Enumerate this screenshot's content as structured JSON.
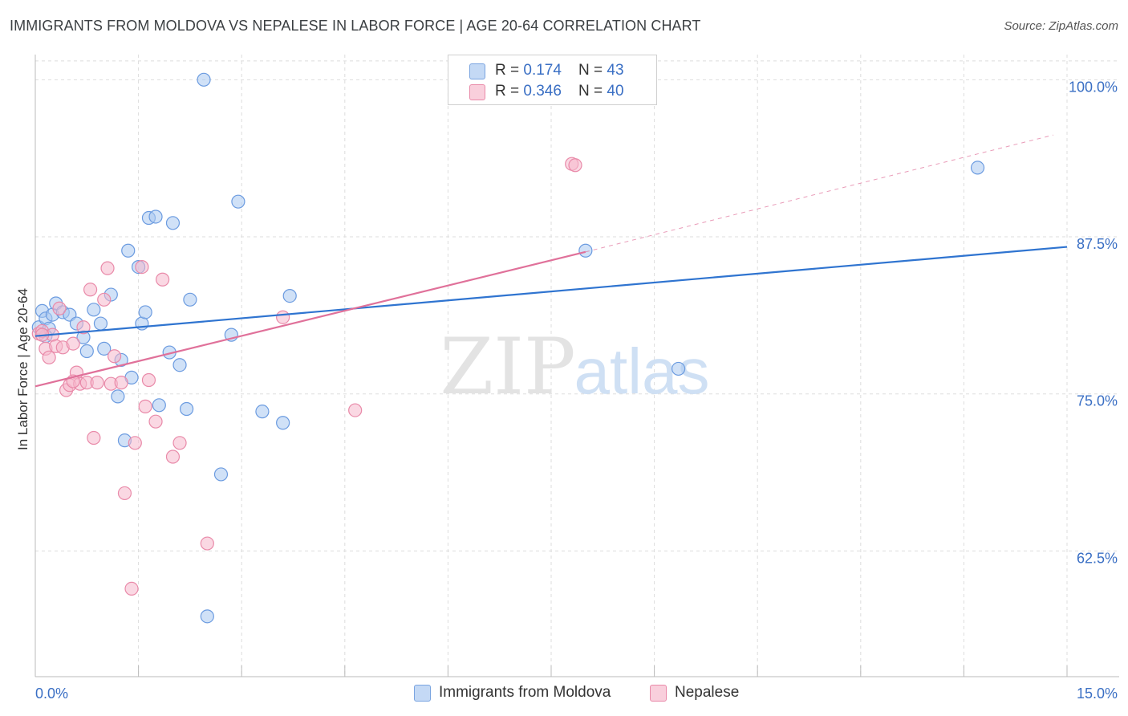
{
  "header": {
    "title": "IMMIGRANTS FROM MOLDOVA VS NEPALESE IN LABOR FORCE | AGE 20-64 CORRELATION CHART",
    "source": "Source: ZipAtlas.com"
  },
  "watermark": {
    "zip": "ZIP",
    "atlas": "atlas"
  },
  "legend": {
    "rows": [
      {
        "r_label": "R = ",
        "r_value": "0.174",
        "n_label": "N = ",
        "n_value": "43"
      },
      {
        "r_label": "R = ",
        "r_value": "0.346",
        "n_label": "N = ",
        "n_value": "40"
      }
    ]
  },
  "colors": {
    "blue_fill": "#a9c8f0",
    "blue_stroke": "#6b9be0",
    "blue_line": "#2f74d0",
    "pink_fill": "#f6b8cc",
    "pink_stroke": "#e98aa9",
    "pink_line": "#e0719a",
    "axis_label": "#3a6fc4",
    "grid": "#dddddd"
  },
  "chart_data": {
    "type": "scatter",
    "title": "IMMIGRANTS FROM MOLDOVA VS NEPALESE IN LABOR FORCE | AGE 20-64 CORRELATION CHART",
    "xlabel": "",
    "ylabel": "In Labor Force | Age 20-64",
    "xlim": [
      0,
      15
    ],
    "ylim": [
      52.5,
      102
    ],
    "x_tick_labels": [
      {
        "value": 0,
        "label": "0.0%"
      },
      {
        "value": 15,
        "label": "15.0%"
      }
    ],
    "y_tick_labels": [
      {
        "value": 100,
        "label": "100.0%"
      },
      {
        "value": 87.5,
        "label": "87.5%"
      },
      {
        "value": 75,
        "label": "75.0%"
      },
      {
        "value": 62.5,
        "label": "62.5%"
      }
    ],
    "grid": true,
    "legend_position": "top-center",
    "series": [
      {
        "name": "Immigrants from Moldova",
        "color": "#a9c8f0",
        "trend": {
          "x": [
            0,
            15
          ],
          "y": [
            79.6,
            86.7
          ]
        },
        "points": [
          [
            0.05,
            80.3
          ],
          [
            0.1,
            81.6
          ],
          [
            0.15,
            81.0
          ],
          [
            0.2,
            80.2
          ],
          [
            0.25,
            81.3
          ],
          [
            0.3,
            82.2
          ],
          [
            0.4,
            81.5
          ],
          [
            0.5,
            81.3
          ],
          [
            0.6,
            80.6
          ],
          [
            0.7,
            79.5
          ],
          [
            0.75,
            78.4
          ],
          [
            0.85,
            81.7
          ],
          [
            0.95,
            80.6
          ],
          [
            1.0,
            78.6
          ],
          [
            1.1,
            82.9
          ],
          [
            1.2,
            74.8
          ],
          [
            1.25,
            77.7
          ],
          [
            1.3,
            71.3
          ],
          [
            1.35,
            86.4
          ],
          [
            1.4,
            76.3
          ],
          [
            1.5,
            85.1
          ],
          [
            1.55,
            80.6
          ],
          [
            1.6,
            81.5
          ],
          [
            1.65,
            89.0
          ],
          [
            1.75,
            89.1
          ],
          [
            1.8,
            74.1
          ],
          [
            1.95,
            78.3
          ],
          [
            2.0,
            88.6
          ],
          [
            2.1,
            77.3
          ],
          [
            2.2,
            73.8
          ],
          [
            2.25,
            82.5
          ],
          [
            2.45,
            100.0
          ],
          [
            2.5,
            57.3
          ],
          [
            2.7,
            68.6
          ],
          [
            2.85,
            79.7
          ],
          [
            2.95,
            90.3
          ],
          [
            3.3,
            73.6
          ],
          [
            3.6,
            72.7
          ],
          [
            3.7,
            82.8
          ],
          [
            8.0,
            86.4
          ],
          [
            9.35,
            77.0
          ],
          [
            13.7,
            93.0
          ],
          [
            0.15,
            79.6
          ]
        ]
      },
      {
        "name": "Nepalese",
        "color": "#f6b8cc",
        "trend": {
          "x": [
            0,
            8.0
          ],
          "y": [
            75.6,
            86.3
          ]
        },
        "trend_extension": {
          "x": [
            8.0,
            14.8
          ],
          "y": [
            86.3,
            95.6
          ]
        },
        "points": [
          [
            0.05,
            79.8
          ],
          [
            0.1,
            80.0
          ],
          [
            0.15,
            78.6
          ],
          [
            0.2,
            77.9
          ],
          [
            0.25,
            79.7
          ],
          [
            0.3,
            78.8
          ],
          [
            0.35,
            81.8
          ],
          [
            0.4,
            78.7
          ],
          [
            0.45,
            75.3
          ],
          [
            0.5,
            75.7
          ],
          [
            0.55,
            79.0
          ],
          [
            0.6,
            76.7
          ],
          [
            0.65,
            75.8
          ],
          [
            0.7,
            80.3
          ],
          [
            0.75,
            75.9
          ],
          [
            0.8,
            83.3
          ],
          [
            0.85,
            71.5
          ],
          [
            0.9,
            75.9
          ],
          [
            1.0,
            82.5
          ],
          [
            1.05,
            85.0
          ],
          [
            1.1,
            75.8
          ],
          [
            1.15,
            78.0
          ],
          [
            1.25,
            75.9
          ],
          [
            1.3,
            67.1
          ],
          [
            1.4,
            59.5
          ],
          [
            1.45,
            71.1
          ],
          [
            1.55,
            85.1
          ],
          [
            1.6,
            74.0
          ],
          [
            1.65,
            76.1
          ],
          [
            1.75,
            72.8
          ],
          [
            1.85,
            84.1
          ],
          [
            2.0,
            70.0
          ],
          [
            2.1,
            71.1
          ],
          [
            2.5,
            63.1
          ],
          [
            3.6,
            81.1
          ],
          [
            4.65,
            73.7
          ],
          [
            7.8,
            93.3
          ],
          [
            7.85,
            93.2
          ],
          [
            0.1,
            79.7
          ],
          [
            0.55,
            76.0
          ]
        ]
      }
    ]
  }
}
